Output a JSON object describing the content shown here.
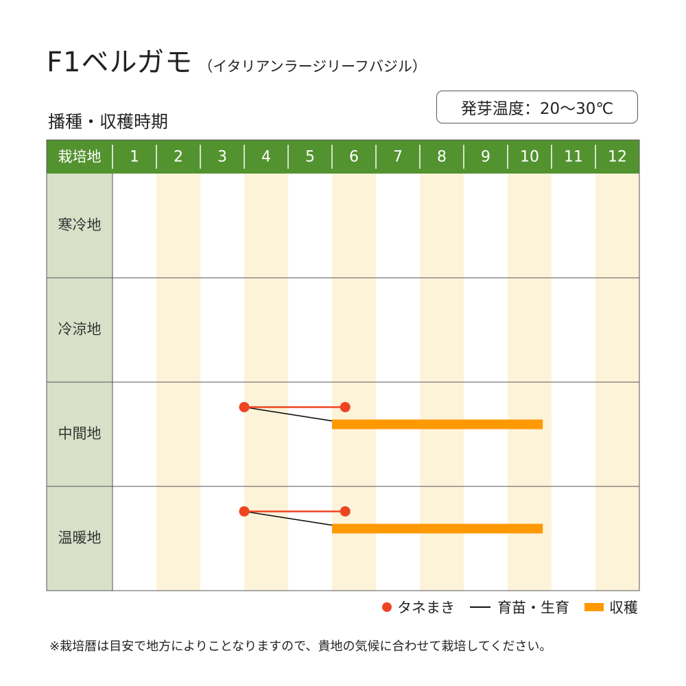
{
  "header": {
    "title": "F1ベルガモ",
    "subtitle": "（イタリアンラージリーフバジル）",
    "germination_temp": "発芽温度：20〜30℃",
    "section_title": "播種・収穫時期"
  },
  "chart_data": {
    "type": "table",
    "corner_label": "栽培地",
    "months": [
      "1",
      "2",
      "3",
      "4",
      "5",
      "6",
      "7",
      "8",
      "9",
      "10",
      "11",
      "12"
    ],
    "regions": [
      "寒冷地",
      "冷涼地",
      "中間地",
      "温暖地"
    ],
    "schedule": [
      {
        "region": "寒冷地",
        "sowing": null,
        "harvest": null
      },
      {
        "region": "冷涼地",
        "sowing": null,
        "harvest": null
      },
      {
        "region": "中間地",
        "sowing": {
          "start": 4.0,
          "end": 6.3
        },
        "harvest": {
          "start": 6.0,
          "end": 10.8
        }
      },
      {
        "region": "温暖地",
        "sowing": {
          "start": 4.0,
          "end": 6.3
        },
        "harvest": {
          "start": 6.0,
          "end": 10.8
        }
      }
    ],
    "colors": {
      "header_bg": "#52922f",
      "header_text": "#ffffff",
      "region_bg": "#d9e0c8",
      "stripe": "#fdf3d9",
      "sowing": "#ee4422",
      "growing": "#111111",
      "harvest": "#ff9900",
      "grid": "#555555"
    }
  },
  "legend": {
    "sowing_label": "タネまき",
    "growing_label": "育苗・生育",
    "harvest_label": "収穫"
  },
  "footnote": "※栽培暦は目安で地方によりことなりますので、貴地の気候に合わせて栽培してください。"
}
